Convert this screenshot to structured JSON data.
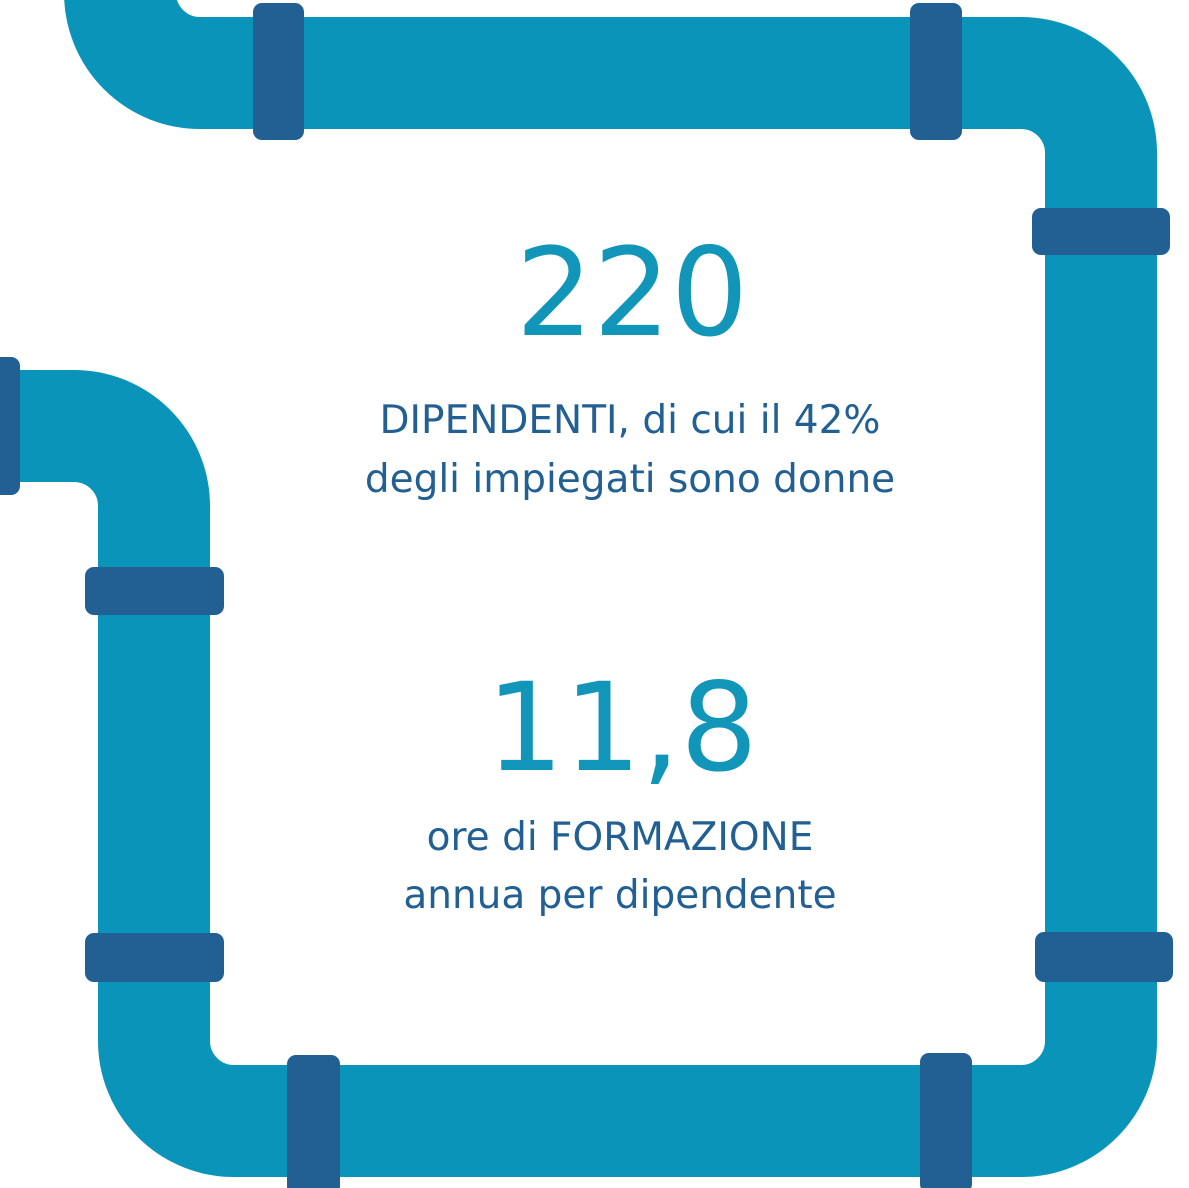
{
  "stats": [
    {
      "number": "220",
      "lines": [
        "DIPENDENTI, di cui il 42%",
        "degli impiegati sono donne"
      ]
    },
    {
      "number": "11,8",
      "lines": [
        "ore di FORMAZIONE",
        "annua per dipendente"
      ]
    }
  ]
}
